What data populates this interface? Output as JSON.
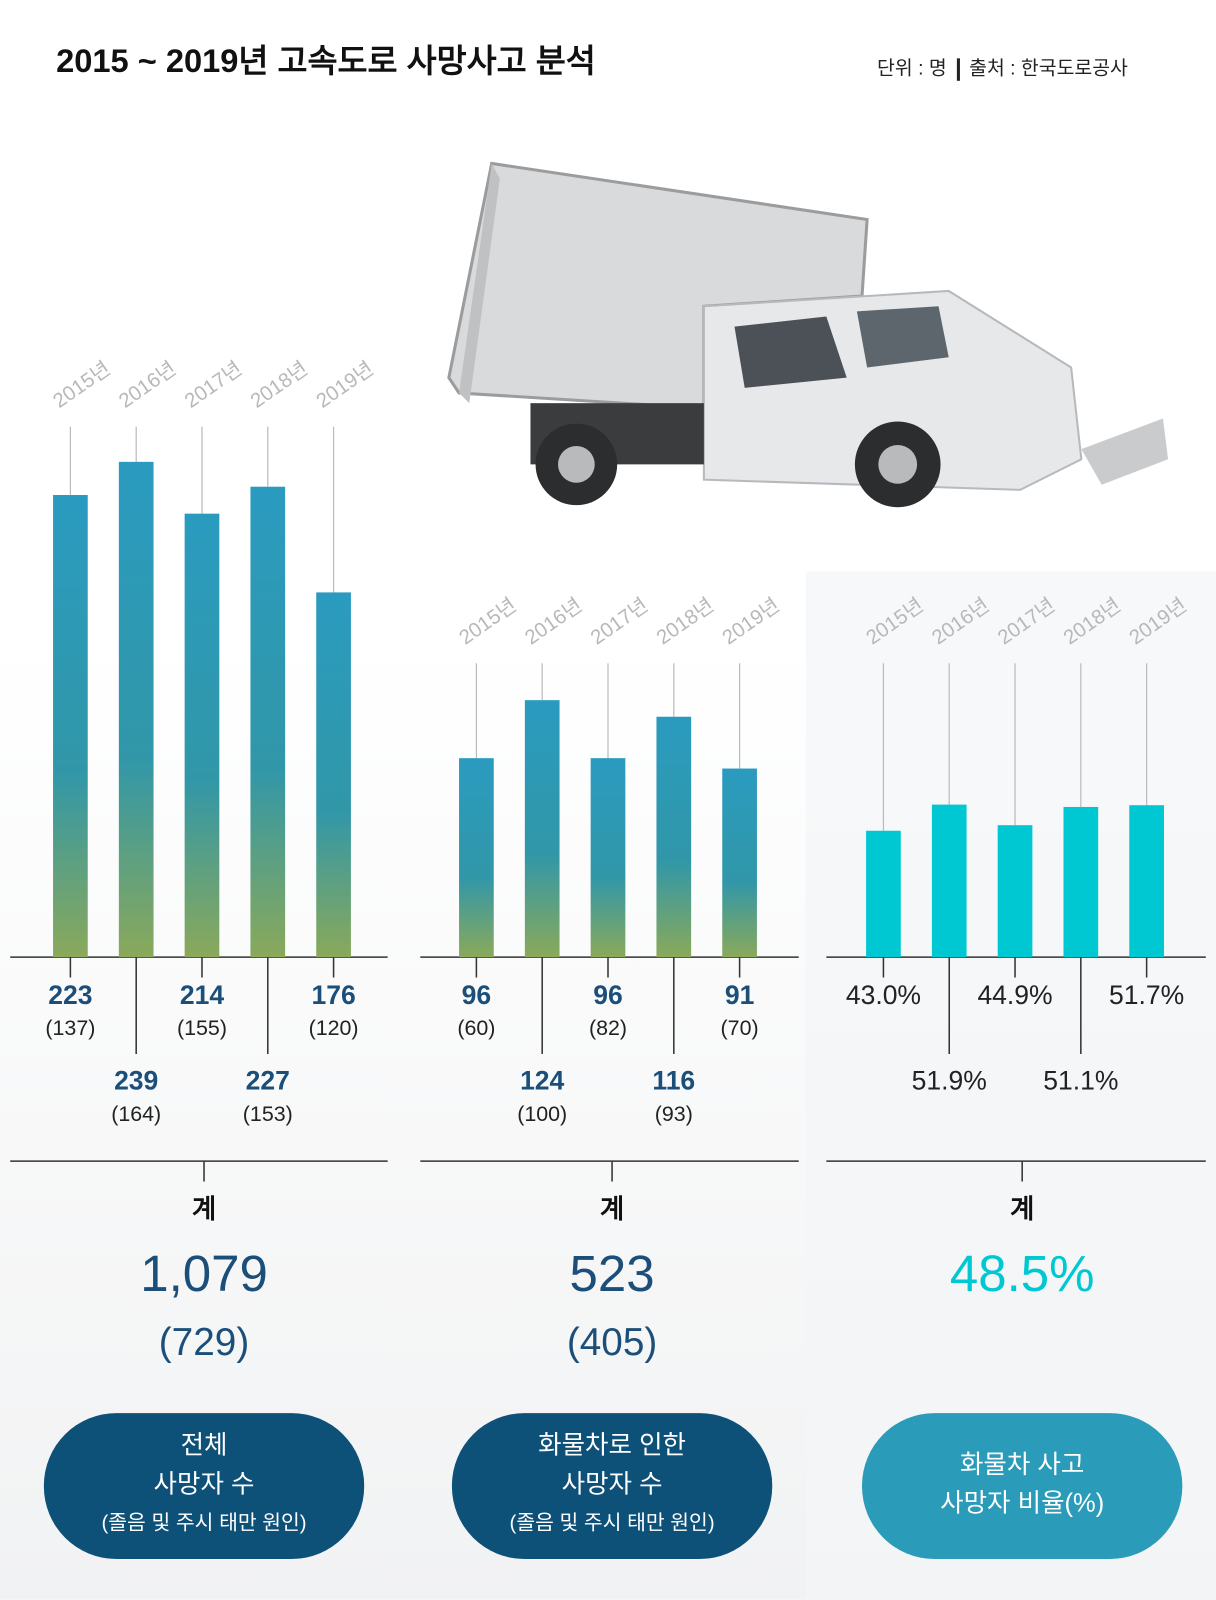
{
  "title": "2015 ~ 2019년 고속도로 사망사고 분석",
  "unit": "단위 : 명",
  "source": "출처 : 한국도로공사",
  "chart_data": [
    {
      "type": "bar",
      "categories": [
        "2015년",
        "2016년",
        "2017년",
        "2018년",
        "2019년"
      ],
      "values": [
        223,
        239,
        214,
        227,
        176
      ],
      "sub_labels": [
        "(137)",
        "(164)",
        "(155)",
        "(153)",
        "(120)"
      ],
      "ylim": [
        0,
        256
      ],
      "color": "gradient",
      "total_heading": "계",
      "total": "1,079",
      "total_sub": "(729)",
      "caption": [
        "전체",
        "사망자 수"
      ],
      "caption_note": "(졸음 및 주시 태만 원인)"
    },
    {
      "type": "bar",
      "categories": [
        "2015년",
        "2016년",
        "2017년",
        "2018년",
        "2019년"
      ],
      "values": [
        96,
        124,
        96,
        116,
        91
      ],
      "sub_labels": [
        "(60)",
        "(100)",
        "(82)",
        "(93)",
        "(70)"
      ],
      "ylim": [
        0,
        256
      ],
      "color": "gradient",
      "total_heading": "계",
      "total": "523",
      "total_sub": "(405)",
      "caption": [
        "화물차로 인한",
        "사망자 수"
      ],
      "caption_note": "(졸음 및 주시 태만 원인)"
    },
    {
      "type": "bar",
      "categories": [
        "2015년",
        "2016년",
        "2017년",
        "2018년",
        "2019년"
      ],
      "values": [
        43.0,
        51.9,
        44.9,
        51.1,
        51.7
      ],
      "value_labels": [
        "43.0%",
        "51.9%",
        "44.9%",
        "51.1%",
        "51.7%"
      ],
      "ylim": [
        0,
        100
      ],
      "color": "#00c8d2",
      "total_heading": "계",
      "total": "48.5%",
      "caption": [
        "화물차 사고",
        "사망자 비율(%)"
      ]
    }
  ]
}
